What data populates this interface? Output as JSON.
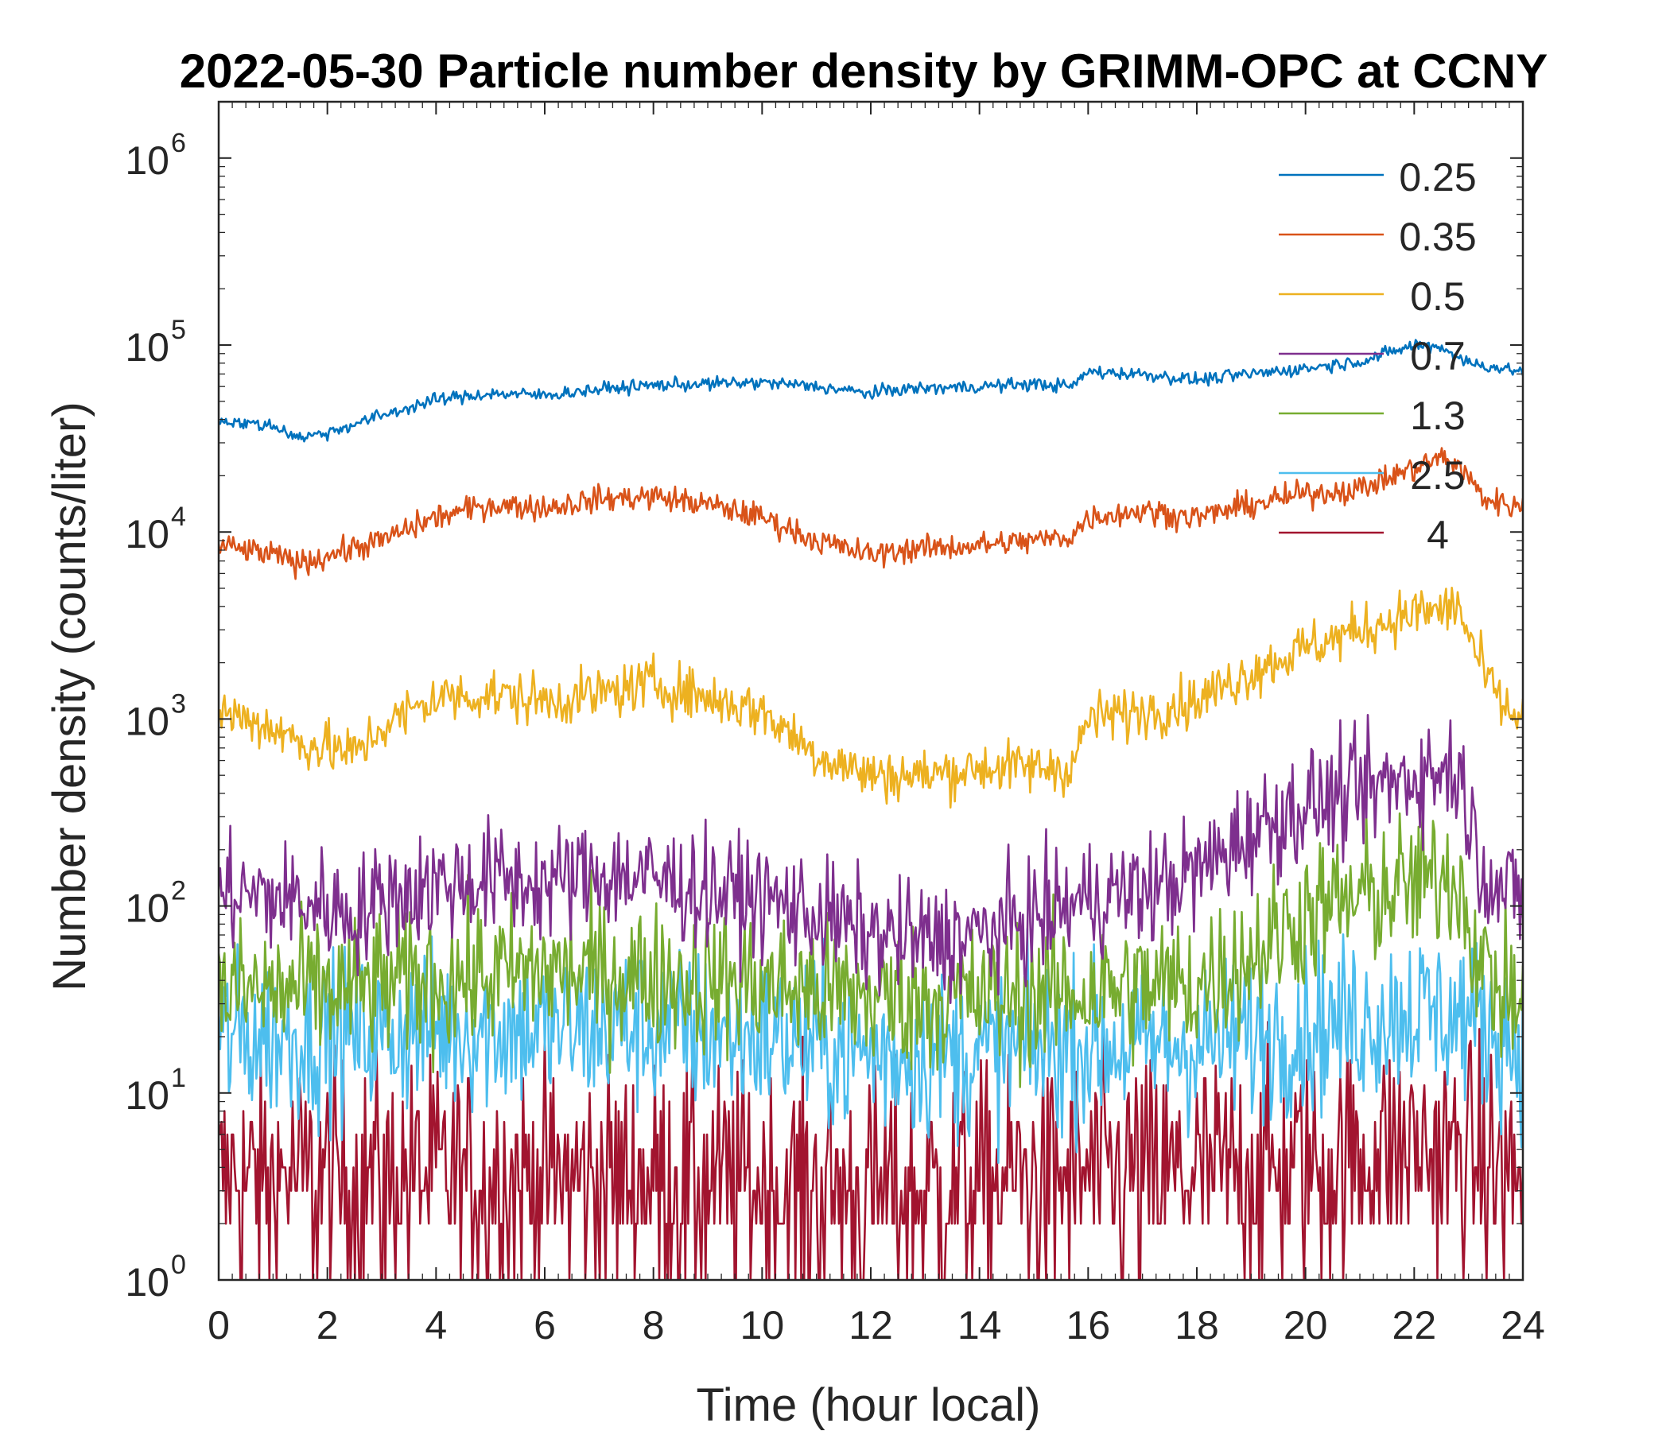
{
  "chart_data": {
    "type": "line",
    "title": "2022-05-30 Particle number density by GRIMM-OPC at CCNY",
    "xlabel": "Time (hour local)",
    "ylabel": "Number density (counts/liter)",
    "xlim": [
      0,
      24
    ],
    "ylim": [
      1,
      2000000
    ],
    "yscale": "log",
    "xticks": [
      0,
      2,
      4,
      6,
      8,
      10,
      12,
      14,
      16,
      18,
      20,
      22,
      24
    ],
    "xtick_labels": [
      "0",
      "2",
      "4",
      "6",
      "8",
      "10",
      "12",
      "14",
      "16",
      "18",
      "20",
      "22",
      "24"
    ],
    "ytick_exponents": [
      "0",
      "1",
      "2",
      "3",
      "4",
      "5",
      "6"
    ],
    "ytick_base": "10",
    "legend_position": "top-right",
    "grid": false,
    "series": [
      {
        "name": "0.25",
        "color": "#0072BD",
        "noise": 0.025,
        "x": [
          0,
          0.5,
          1,
          1.5,
          2,
          3,
          4,
          5,
          6,
          7,
          8,
          10,
          11,
          12,
          12.5,
          14,
          15,
          15.7,
          16,
          17,
          18,
          19,
          20,
          21,
          21.5,
          22,
          22.5,
          23,
          24
        ],
        "y": [
          40000,
          38000,
          37000,
          32000,
          34000,
          42000,
          51000,
          55000,
          54000,
          58000,
          61000,
          63000,
          60000,
          55000,
          58000,
          60000,
          62000,
          60000,
          72000,
          70000,
          65000,
          70000,
          75000,
          82000,
          90000,
          100000,
          98000,
          80000,
          72000
        ]
      },
      {
        "name": "0.35",
        "color": "#D95319",
        "noise": 0.05,
        "x": [
          0,
          1,
          1.5,
          2,
          3,
          4,
          5,
          6,
          7,
          8,
          9,
          10,
          11,
          12,
          12.5,
          14,
          15,
          15.7,
          16,
          17,
          18,
          19,
          20,
          21,
          22,
          22.5,
          22.8,
          23.3,
          24
        ],
        "y": [
          8500,
          7500,
          6800,
          7500,
          9000,
          12000,
          14000,
          13500,
          15000,
          15500,
          14000,
          12000,
          9000,
          7500,
          8000,
          8500,
          9000,
          9500,
          12000,
          13000,
          12000,
          14000,
          16000,
          17000,
          22000,
          25000,
          23000,
          15000,
          13500
        ]
      },
      {
        "name": "0.5",
        "color": "#EDB120",
        "noise": 0.1,
        "x": [
          0,
          0.5,
          1,
          1.5,
          2,
          2.5,
          3,
          4,
          5,
          6,
          7,
          8,
          9,
          10,
          11,
          12,
          13,
          14,
          15,
          15.7,
          16,
          17,
          18,
          19,
          20,
          21,
          22,
          22.5,
          22.8,
          23.3,
          23.7,
          24
        ],
        "y": [
          1100,
          1000,
          900,
          750,
          700,
          650,
          900,
          1300,
          1350,
          1250,
          1350,
          1550,
          1300,
          1100,
          650,
          500,
          500,
          550,
          550,
          550,
          1000,
          1100,
          1250,
          1800,
          2400,
          3000,
          3700,
          3800,
          4000,
          1700,
          1100,
          1000
        ]
      },
      {
        "name": "0.7",
        "color": "#7E2F8E",
        "noise": 0.22,
        "x": [
          0,
          1,
          2,
          2.5,
          3,
          4,
          5,
          6,
          7,
          8,
          9,
          10,
          11,
          12,
          13,
          14,
          15,
          16,
          17,
          18,
          19,
          20,
          21,
          22,
          22.8,
          23.2,
          23.6,
          24
        ],
        "y": [
          120,
          110,
          100,
          90,
          110,
          130,
          140,
          130,
          150,
          140,
          120,
          110,
          90,
          70,
          65,
          70,
          85,
          110,
          120,
          150,
          250,
          350,
          400,
          500,
          550,
          180,
          120,
          110
        ]
      },
      {
        "name": "1.3",
        "color": "#77AC30",
        "noise": 0.28,
        "x": [
          0,
          2,
          4,
          6,
          8,
          10,
          12,
          14,
          16,
          18,
          19,
          20,
          21,
          22,
          22.8,
          23.2,
          23.6,
          24
        ],
        "y": [
          35,
          35,
          40,
          45,
          42,
          38,
          32,
          32,
          35,
          38,
          55,
          90,
          110,
          130,
          150,
          50,
          35,
          30
        ]
      },
      {
        "name": "2.5",
        "color": "#4DBEEE",
        "noise": 0.32,
        "x": [
          0,
          2,
          4,
          6,
          8,
          10,
          12,
          14,
          16,
          18,
          20,
          22,
          23,
          24
        ],
        "y": [
          20,
          20,
          22,
          22,
          22,
          20,
          16,
          16,
          18,
          18,
          22,
          28,
          25,
          18
        ]
      },
      {
        "name": "4",
        "color": "#A2142F",
        "noise": 0.45,
        "x": [
          0,
          4,
          8,
          12,
          16,
          20,
          22,
          23,
          24
        ],
        "y": [
          3.5,
          3.5,
          3.5,
          3.0,
          3.5,
          4.0,
          5.0,
          4.5,
          3.5
        ]
      }
    ]
  }
}
